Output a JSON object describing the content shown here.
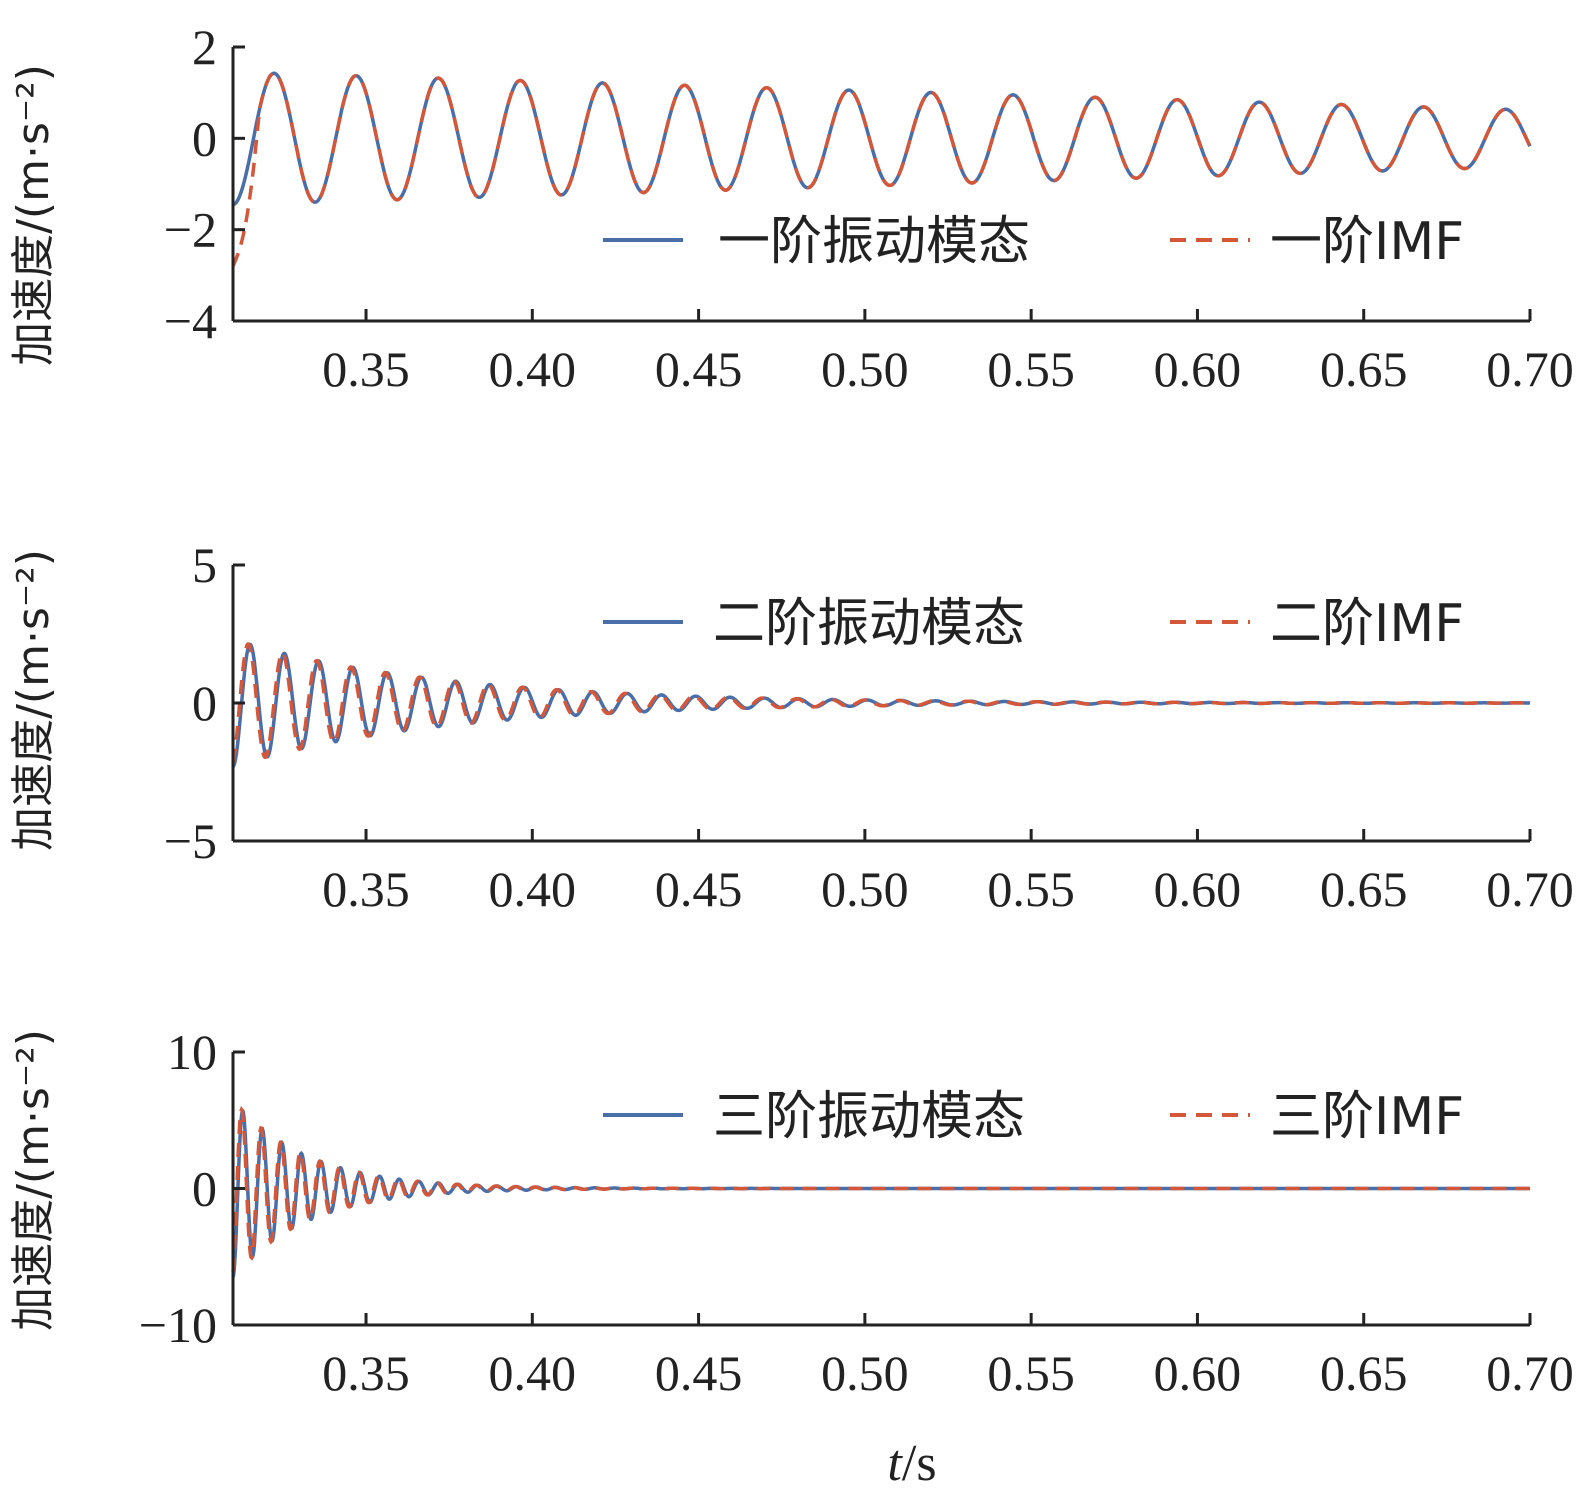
{
  "chart_data": [
    {
      "type": "line",
      "ylabel": "加速度/(m·s⁻²)",
      "xlim": [
        0.31,
        0.7
      ],
      "ylim": [
        -4,
        2
      ],
      "xticks": [
        "0.35",
        "0.40",
        "0.45",
        "0.50",
        "0.55",
        "0.60",
        "0.65",
        "0.70"
      ],
      "yticks": [
        "2",
        "0",
        "−2",
        "−4"
      ],
      "yticks_values": [
        2,
        0,
        -2,
        -4
      ],
      "legend_position": "bottom-right",
      "series": [
        {
          "name": "一阶振动模态",
          "style": "solid",
          "color": "#4a6ea8",
          "amplitude_start": 1.45,
          "amplitude_end": 0.62,
          "frequency_hz": 40.5
        },
        {
          "name": "一阶IMF",
          "style": "dashed",
          "color": "#d4573a",
          "amplitude_start": 1.45,
          "amplitude_end": 0.62,
          "frequency_hz": 40.5,
          "start_value": -2.8
        }
      ]
    },
    {
      "type": "line",
      "ylabel": "加速度/(m·s⁻²)",
      "xlim": [
        0.31,
        0.7
      ],
      "ylim": [
        -5,
        5
      ],
      "xticks": [
        "0.35",
        "0.40",
        "0.45",
        "0.50",
        "0.55",
        "0.60",
        "0.65",
        "0.70"
      ],
      "yticks": [
        "5",
        "0",
        "−5"
      ],
      "yticks_values": [
        5,
        0,
        -5
      ],
      "legend_position": "top-right",
      "series": [
        {
          "name": "二阶振动模态",
          "style": "solid",
          "color": "#4a6ea8",
          "amplitude_start": 2.3,
          "decay_per_s": 16,
          "frequency_hz": 97
        },
        {
          "name": "二阶IMF",
          "style": "dashed",
          "color": "#d4573a",
          "amplitude_start": 2.3,
          "decay_per_s": 16,
          "frequency_hz": 97
        }
      ]
    },
    {
      "type": "line",
      "ylabel": "加速度/(m·s⁻²)",
      "xlim": [
        0.31,
        0.7
      ],
      "ylim": [
        -10,
        10
      ],
      "xticks": [
        "0.35",
        "0.40",
        "0.45",
        "0.50",
        "0.55",
        "0.60",
        "0.65",
        "0.70"
      ],
      "yticks": [
        "10",
        "0",
        "−10"
      ],
      "yticks_values": [
        10,
        0,
        -10
      ],
      "legend_position": "top-right",
      "series": [
        {
          "name": "三阶振动模态",
          "style": "solid",
          "color": "#4a6ea8",
          "amplitude_start": 6.5,
          "decay_per_s": 45,
          "frequency_hz": 170
        },
        {
          "name": "三阶IMF",
          "style": "dashed",
          "color": "#d4573a",
          "amplitude_start": 6.5,
          "decay_per_s": 45,
          "frequency_hz": 170
        }
      ]
    }
  ],
  "xlabel_italic": "t",
  "xlabel_unit": "/s"
}
